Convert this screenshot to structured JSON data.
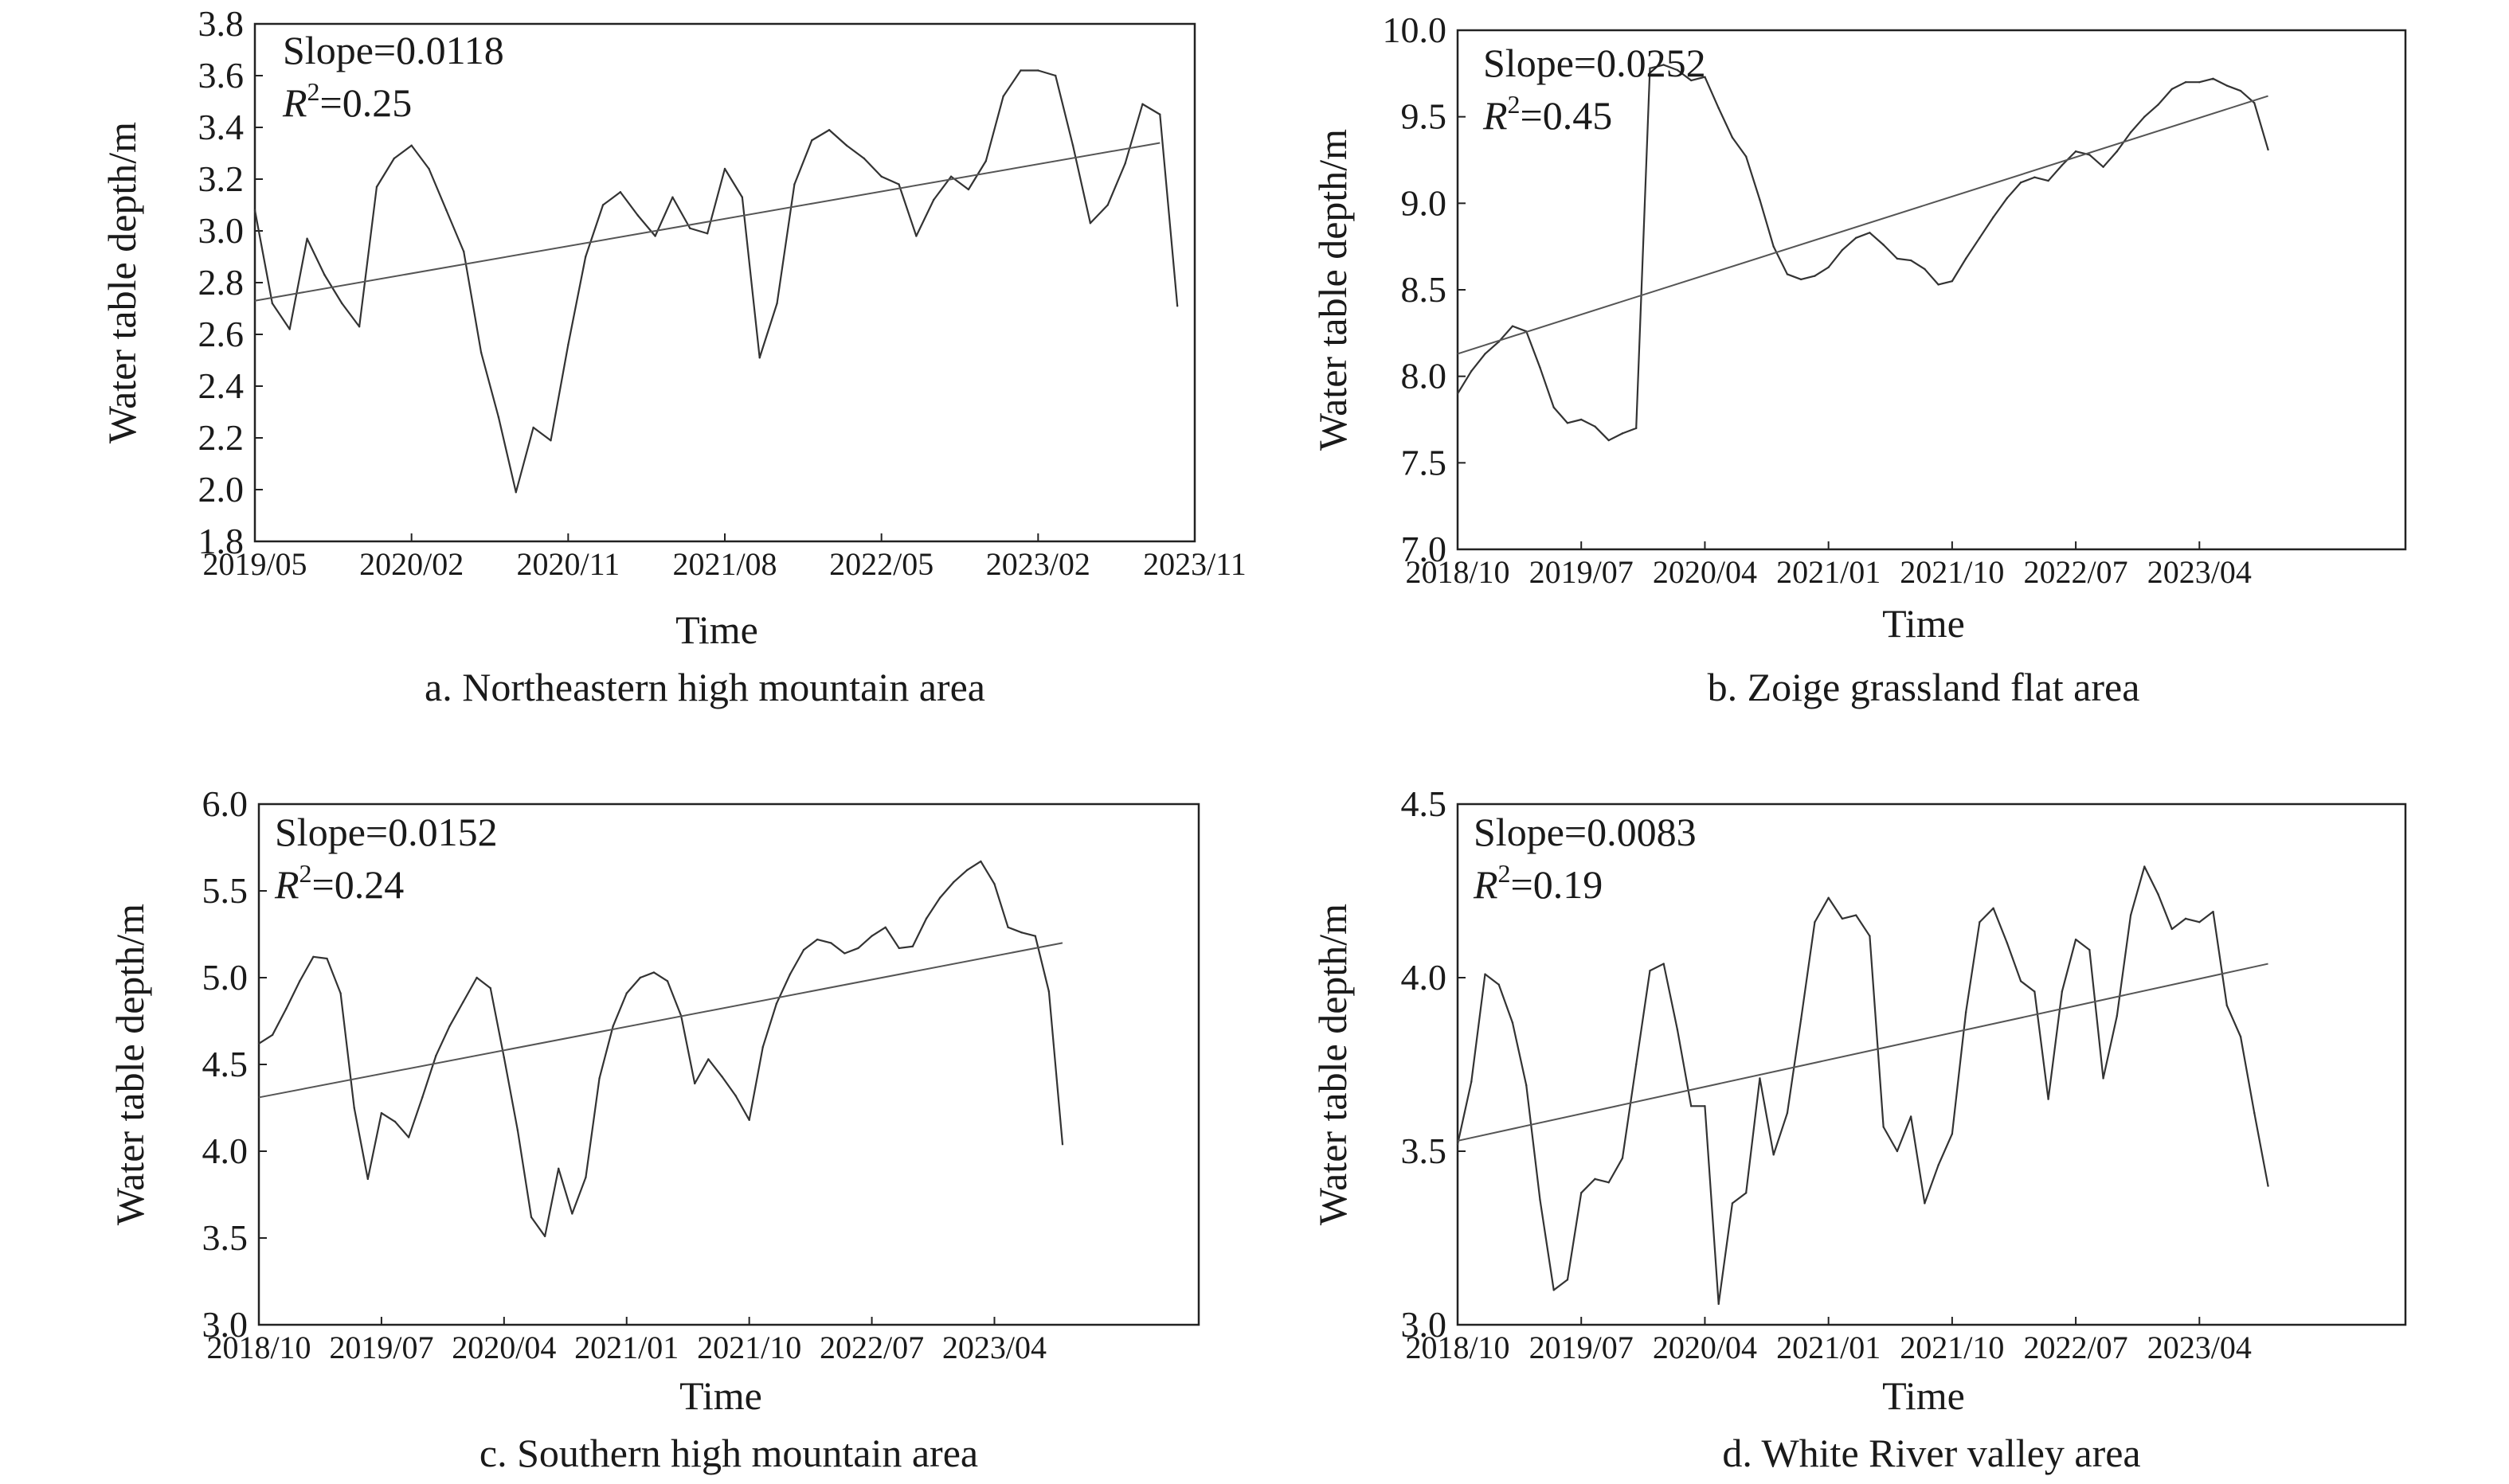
{
  "figure": {
    "style": {
      "line_color": "#333333",
      "trend_color": "#555555",
      "frame_color": "#222222"
    }
  },
  "chart_data": [
    {
      "type": "line",
      "caption": "a. Northeastern high mountain area",
      "xlabel": "Time",
      "ylabel": "Water table depth/m",
      "annotation": {
        "slope": "Slope=0.0118",
        "r2_prefix": "R",
        "r2_sup": "2",
        "r2_value": "=0.25"
      },
      "xlim": [
        0,
        54
      ],
      "ylim": [
        1.8,
        3.8
      ],
      "x_ticks": [
        {
          "label": "2019/05",
          "x": 0
        },
        {
          "label": "2020/02",
          "x": 9
        },
        {
          "label": "2020/11",
          "x": 18
        },
        {
          "label": "2021/08",
          "x": 27
        },
        {
          "label": "2022/05",
          "x": 36
        },
        {
          "label": "2023/02",
          "x": 45
        },
        {
          "label": "2023/11",
          "x": 54
        }
      ],
      "y_ticks": [
        "1.8",
        "2.0",
        "2.2",
        "2.4",
        "2.6",
        "2.8",
        "3.0",
        "3.2",
        "3.4",
        "3.6",
        "3.8"
      ],
      "series": [
        {
          "values": [
            3.08,
            2.72,
            2.62,
            2.97,
            2.83,
            2.72,
            2.63,
            3.17,
            3.28,
            3.33,
            3.24,
            3.08,
            2.92,
            2.53,
            2.28,
            1.99,
            2.24,
            2.19,
            2.56,
            2.9,
            3.1,
            3.15,
            3.06,
            2.98,
            3.13,
            3.01,
            2.99,
            3.24,
            3.13,
            2.51,
            2.72,
            3.18,
            3.35,
            3.39,
            3.33,
            3.28,
            3.21,
            3.18,
            2.98,
            3.12,
            3.21,
            3.16,
            3.27,
            3.52,
            3.62,
            3.62,
            3.6,
            3.33,
            3.03,
            3.1,
            3.26,
            3.49,
            3.45,
            2.71
          ]
        }
      ],
      "trend": {
        "x": [
          0,
          52
        ],
        "y": [
          2.73,
          3.34
        ]
      }
    },
    {
      "type": "line",
      "caption": "b. Zoige grassland flat area",
      "xlabel": "Time",
      "ylabel": "Water table depth/m",
      "annotation": {
        "slope": "Slope=0.0252",
        "r2_prefix": "R",
        "r2_sup": "2",
        "r2_value": "=0.45"
      },
      "xlim": [
        0,
        69
      ],
      "ylim": [
        7.0,
        10.0
      ],
      "x_ticks": [
        {
          "label": "2018/10",
          "x": 0
        },
        {
          "label": "2019/07",
          "x": 9
        },
        {
          "label": "2020/04",
          "x": 18
        },
        {
          "label": "2021/01",
          "x": 27
        },
        {
          "label": "2021/10",
          "x": 36
        },
        {
          "label": "2022/07",
          "x": 45
        },
        {
          "label": "2023/04",
          "x": 54
        }
      ],
      "y_ticks": [
        "7.0",
        "7.5",
        "8.0",
        "8.5",
        "9.0",
        "9.5",
        "10.0"
      ],
      "series": [
        {
          "values": [
            7.9,
            8.03,
            8.13,
            8.2,
            8.29,
            8.26,
            8.05,
            7.82,
            7.73,
            7.75,
            7.71,
            7.63,
            7.67,
            7.7,
            9.78,
            9.8,
            9.77,
            9.71,
            9.73,
            9.55,
            9.38,
            9.27,
            9.02,
            8.75,
            8.59,
            8.56,
            8.58,
            8.63,
            8.73,
            8.8,
            8.83,
            8.76,
            8.68,
            8.67,
            8.62,
            8.53,
            8.55,
            8.68,
            8.8,
            8.92,
            9.03,
            9.12,
            9.15,
            9.13,
            9.22,
            9.3,
            9.28,
            9.21,
            9.3,
            9.41,
            9.5,
            9.57,
            9.66,
            9.7,
            9.7,
            9.72,
            9.68,
            9.65,
            9.58,
            9.31
          ]
        }
      ],
      "trend": {
        "x": [
          0,
          59
        ],
        "y": [
          8.13,
          9.62
        ]
      }
    },
    {
      "type": "line",
      "caption": "c. Southern high mountain area",
      "xlabel": "Time",
      "ylabel": "Water table depth/m",
      "annotation": {
        "slope": "Slope=0.0152",
        "r2_prefix": "R",
        "r2_sup": "2",
        "r2_value": "=0.24"
      },
      "xlim": [
        0,
        69
      ],
      "ylim": [
        3.0,
        6.0
      ],
      "x_ticks": [
        {
          "label": "2018/10",
          "x": 0
        },
        {
          "label": "2019/07",
          "x": 9
        },
        {
          "label": "2020/04",
          "x": 18
        },
        {
          "label": "2021/01",
          "x": 27
        },
        {
          "label": "2021/10",
          "x": 36
        },
        {
          "label": "2022/07",
          "x": 45
        },
        {
          "label": "2023/04",
          "x": 54
        }
      ],
      "y_ticks": [
        "3.0",
        "3.5",
        "4.0",
        "4.5",
        "5.0",
        "5.5",
        "6.0"
      ],
      "series": [
        {
          "values": [
            4.62,
            4.67,
            4.82,
            4.98,
            5.12,
            5.11,
            4.91,
            4.25,
            3.84,
            4.22,
            4.17,
            4.08,
            4.31,
            4.55,
            4.72,
            4.86,
            5.0,
            4.94,
            4.54,
            4.12,
            3.62,
            3.51,
            3.9,
            3.64,
            3.85,
            4.42,
            4.72,
            4.91,
            5.0,
            5.03,
            4.98,
            4.78,
            4.39,
            4.53,
            4.43,
            4.32,
            4.18,
            4.6,
            4.85,
            5.02,
            5.16,
            5.22,
            5.2,
            5.14,
            5.17,
            5.24,
            5.29,
            5.17,
            5.18,
            5.34,
            5.46,
            5.55,
            5.62,
            5.67,
            5.54,
            5.29,
            5.26,
            5.24,
            4.92,
            4.04
          ]
        }
      ],
      "trend": {
        "x": [
          0,
          59
        ],
        "y": [
          4.31,
          5.2
        ]
      }
    },
    {
      "type": "line",
      "caption": "d. White River valley area",
      "xlabel": "Time",
      "ylabel": "Water table depth/m",
      "annotation": {
        "slope": "Slope=0.0083",
        "r2_prefix": "R",
        "r2_sup": "2",
        "r2_value": "=0.19"
      },
      "xlim": [
        0,
        69
      ],
      "ylim": [
        3.0,
        4.5
      ],
      "x_ticks": [
        {
          "label": "2018/10",
          "x": 0
        },
        {
          "label": "2019/07",
          "x": 9
        },
        {
          "label": "2020/04",
          "x": 18
        },
        {
          "label": "2021/01",
          "x": 27
        },
        {
          "label": "2021/10",
          "x": 36
        },
        {
          "label": "2022/07",
          "x": 45
        },
        {
          "label": "2023/04",
          "x": 54
        }
      ],
      "y_ticks": [
        "3.0",
        "3.5",
        "4.0",
        "4.5"
      ],
      "series": [
        {
          "values": [
            3.52,
            3.7,
            4.01,
            3.98,
            3.87,
            3.69,
            3.36,
            3.1,
            3.13,
            3.38,
            3.42,
            3.41,
            3.48,
            3.75,
            4.02,
            4.04,
            3.85,
            3.63,
            3.63,
            3.06,
            3.35,
            3.38,
            3.71,
            3.49,
            3.61,
            3.88,
            4.16,
            4.23,
            4.17,
            4.18,
            4.12,
            3.57,
            3.5,
            3.6,
            3.35,
            3.46,
            3.55,
            3.9,
            4.16,
            4.2,
            4.1,
            3.99,
            3.96,
            3.65,
            3.96,
            4.11,
            4.08,
            3.71,
            3.89,
            4.18,
            4.32,
            4.24,
            4.14,
            4.17,
            4.16,
            4.19,
            3.92,
            3.83,
            3.61,
            3.4
          ]
        }
      ],
      "trend": {
        "x": [
          0,
          59
        ],
        "y": [
          3.53,
          4.04
        ]
      }
    }
  ]
}
